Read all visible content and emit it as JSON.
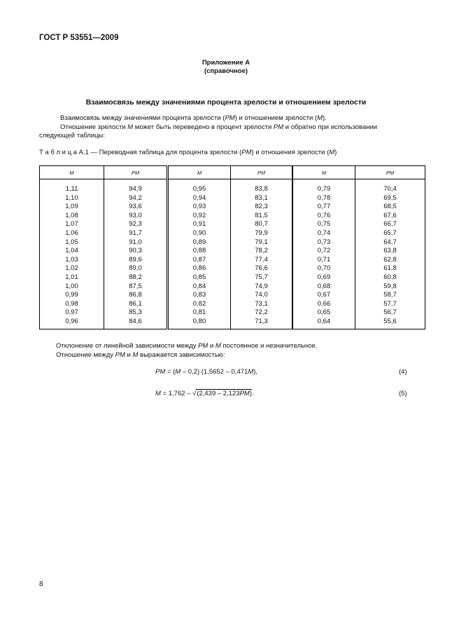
{
  "header": {
    "standard": "ГОСТ Р 53551—2009"
  },
  "appendix": {
    "title": "Приложение А",
    "subtitle": "(справочное)"
  },
  "section_title": "Взаимосвязь между значениями процента зрелости  и отношением зрелости",
  "intro": [
    [
      "Взаимосвязь между значениями процента зрелости (",
      {
        "i": "PM"
      },
      ") и отношением зрелости (",
      {
        "i": "M"
      },
      ")."
    ],
    [
      "Отношение зрелости ",
      {
        "i": "M"
      },
      " может быть переведено в процент зрелости ",
      {
        "i": "PM"
      },
      " и обратно при использовании следующей таблицы:"
    ]
  ],
  "table": {
    "caption": [
      "Т а б л и ц а  А.1 — Переводная таблица для процента зрелости (",
      {
        "i": "PM"
      },
      ") и отношения зрелости (",
      {
        "i": "M"
      },
      ")"
    ],
    "headers": [
      "M",
      "PM",
      "M",
      "PM",
      "M",
      "PM"
    ],
    "rows": [
      [
        "1,11",
        "94,9",
        "0,95",
        "83,8",
        "0,79",
        "70,4"
      ],
      [
        "1,10",
        "94,2",
        "0,94",
        "83,1",
        "0,78",
        "69,5"
      ],
      [
        "1,09",
        "93,6",
        "0,93",
        "82,3",
        "0,77",
        "68,5"
      ],
      [
        "1,08",
        "93,0",
        "0,92",
        "81,5",
        "0,76",
        "67,6"
      ],
      [
        "1,07",
        "92,3",
        "0,91",
        "80,7",
        "0,75",
        "66,7"
      ],
      [
        "1,06",
        "91,7",
        "0,90",
        "79,9",
        "0,74",
        "65,7"
      ],
      [
        "1,05",
        "91,0",
        "0,89",
        "79,1",
        "0,73",
        "64,7"
      ],
      [
        "1,04",
        "90,3",
        "0,88",
        "78,2",
        "0,72",
        "63,8"
      ],
      [
        "1,03",
        "89,6",
        "0,87",
        "77,4",
        "0,71",
        "62,8"
      ],
      [
        "1,02",
        "89,0",
        "0,86",
        "76,6",
        "0,70",
        "61,8"
      ],
      [
        "1,01",
        "88,2",
        "0,85",
        "75,7",
        "0,69",
        "60,8"
      ],
      [
        "1,00",
        "87,5",
        "0,84",
        "74,9",
        "0,68",
        "59,8"
      ],
      [
        "0,99",
        "86,8",
        "0,83",
        "74,0",
        "0,67",
        "58,7"
      ],
      [
        "0,98",
        "86,1",
        "0,82",
        "73,1",
        "0,66",
        "57,7"
      ],
      [
        "0,97",
        "85,3",
        "0,81",
        "72,2",
        "0,65",
        "56,7"
      ],
      [
        "0,96",
        "84,6",
        "0,80",
        "71,3",
        "0,64",
        "55,6"
      ]
    ]
  },
  "after": [
    [
      "Отклонение от линейной зависимости между ",
      {
        "i": "PM"
      },
      "  и ",
      {
        "i": "M"
      },
      "  постоянное и незначительное."
    ],
    [
      "Отношение между ",
      {
        "i": "PM"
      },
      "  и  ",
      {
        "i": "M"
      },
      "  выражается зависимостью:"
    ]
  ],
  "formula4": {
    "parts": [
      {
        "i": "PM"
      },
      " = (",
      {
        "i": "M"
      },
      " – 0,2) (1,5652 – 0,471",
      {
        "i": "M"
      },
      "),"
    ],
    "number": "(4)"
  },
  "formula5": {
    "pre": [
      {
        "i": "M"
      },
      " = 1,762 – √"
    ],
    "radicand": [
      "(2,439 – 2,123",
      {
        "i": "PM"
      },
      ")"
    ],
    "post": ".",
    "number": "(5)"
  },
  "page_number": "8"
}
